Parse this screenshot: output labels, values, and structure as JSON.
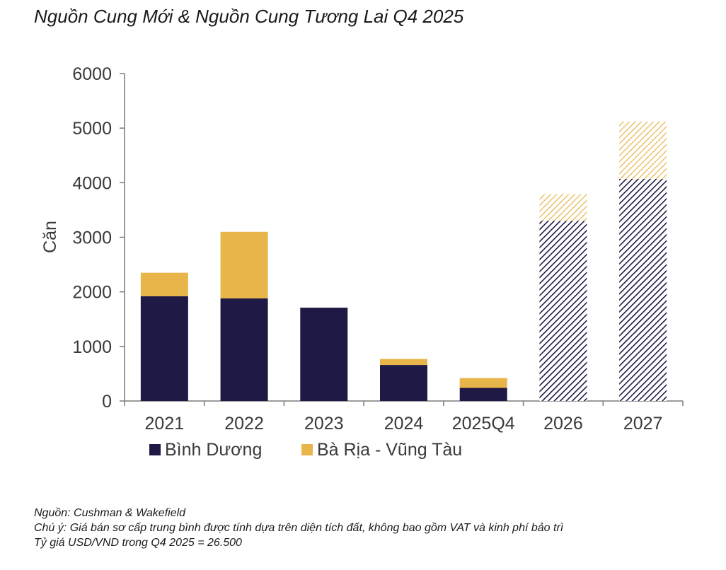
{
  "title": "Nguồn Cung Mới & Nguồn Cung Tương Lai Q4 2025",
  "notes": {
    "source": "Nguồn: Cushman & Wakefield",
    "note": "Chú ý: Giá bán sơ cấp trung bình được tính dựa trên diện tích đất, không bao gồm VAT và  kinh phí bảo trì",
    "fx": "Tỷ giá USD/VND trong Q4 2025 = 26.500"
  },
  "chart_data": {
    "type": "bar",
    "stacked": true,
    "ylabel": "Căn",
    "xlabel": "",
    "ylim": [
      0,
      6000
    ],
    "yticks": [
      0,
      1000,
      2000,
      3000,
      4000,
      5000,
      6000
    ],
    "categories": [
      "2021",
      "2022",
      "2023",
      "2024",
      "2025Q4",
      "2026",
      "2027"
    ],
    "forecast_categories": [
      "2026",
      "2027"
    ],
    "series": [
      {
        "name": "Bình Dương",
        "color": "#1f1a45",
        "values": [
          1920,
          1880,
          1710,
          660,
          240,
          3300,
          4070
        ]
      },
      {
        "name": "Bà Rịa - Vũng Tàu",
        "color": "#e8b54a",
        "values": [
          430,
          1220,
          0,
          110,
          180,
          490,
          1050
        ]
      }
    ],
    "grid": false,
    "legend_position": "bottom-left"
  }
}
